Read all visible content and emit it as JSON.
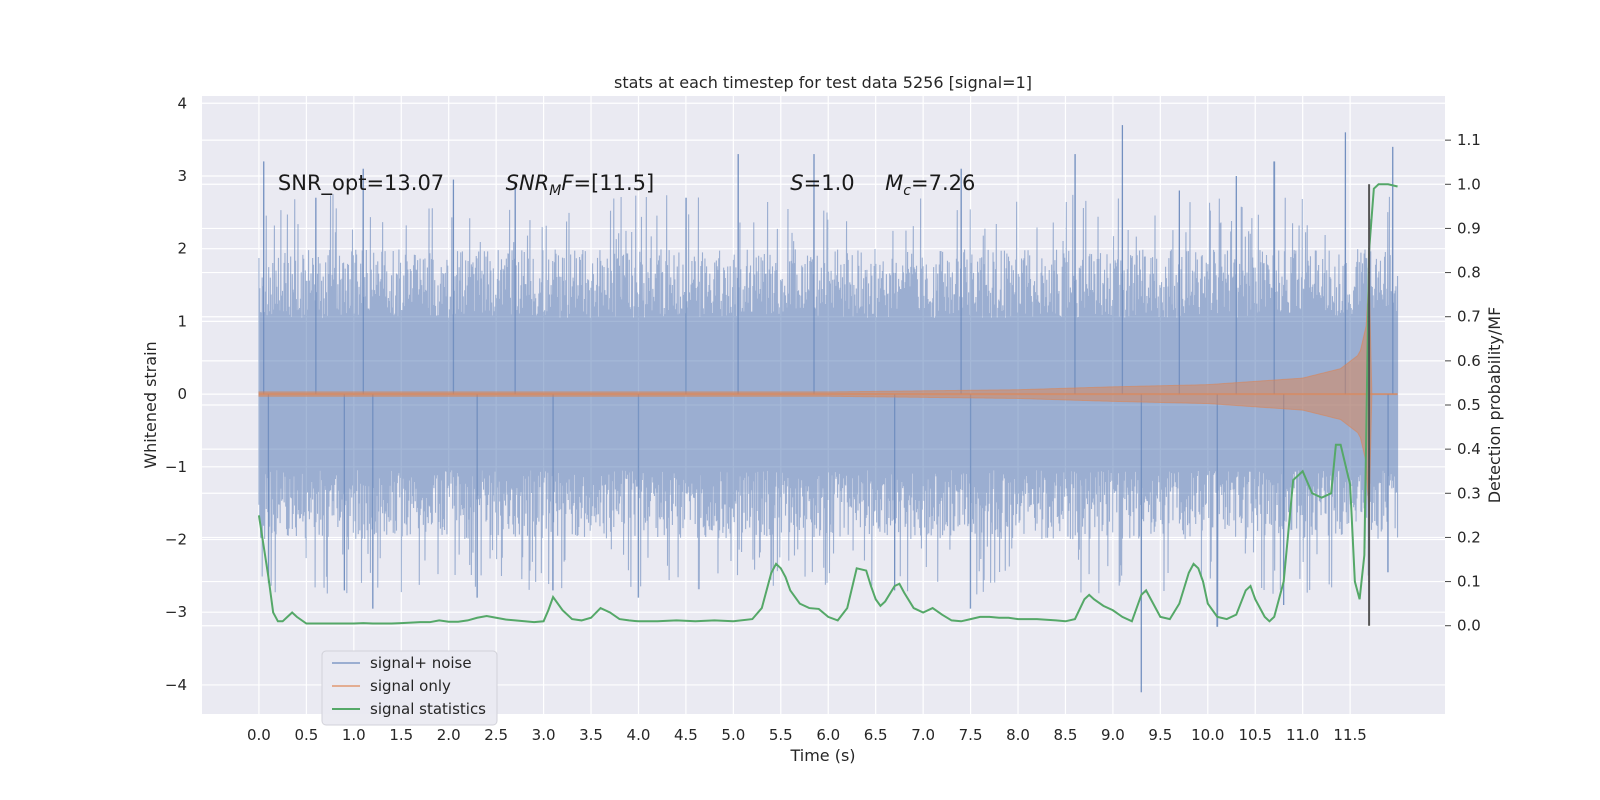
{
  "chart_data": {
    "type": "line",
    "title": "stats at each timestep for test data 5256 [signal=1]",
    "xlabel": "Time (s)",
    "ylabel": "Whitened strain",
    "y2label": "Detection probability/MF",
    "xlim": [
      -0.6,
      12.5
    ],
    "ylim": [
      -4.4,
      4.1
    ],
    "y2lim": [
      -0.2,
      1.2
    ],
    "x_ticks": [
      "0.0",
      "0.5",
      "1.0",
      "1.5",
      "2.0",
      "2.5",
      "3.0",
      "3.5",
      "4.0",
      "4.5",
      "5.0",
      "5.5",
      "6.0",
      "6.5",
      "7.0",
      "7.5",
      "8.0",
      "8.5",
      "9.0",
      "9.5",
      "10.0",
      "10.5",
      "11.0",
      "11.5"
    ],
    "y_ticks": [
      "−4",
      "−3",
      "−2",
      "−1",
      "0",
      "1",
      "2",
      "3",
      "4"
    ],
    "y2_ticks": [
      "0.0",
      "0.1",
      "0.2",
      "0.3",
      "0.4",
      "0.5",
      "0.6",
      "0.7",
      "0.8",
      "0.9",
      "1.0",
      "1.1"
    ],
    "grid": true,
    "legend_position": "lower-left",
    "annotations": [
      {
        "main": "SNR_opt=13.07",
        "x": 0.2
      },
      {
        "main": "SNR",
        "sub": "M",
        "tail": "F=[11.5]",
        "x": 2.6
      },
      {
        "main": "S",
        "tail": "=1.0",
        "x": 5.6
      },
      {
        "main": "M",
        "sub": "c",
        "tail": "=7.26",
        "x": 6.6
      }
    ],
    "annotation_y": 2.9,
    "vline": {
      "x": 11.7,
      "y2_range": [
        0.0,
        1.0
      ]
    },
    "series": [
      {
        "name": "signal+ noise",
        "color": "#4c72b0",
        "axis": "left",
        "x_range": [
          0.0,
          12.0
        ],
        "envelope_peaks": [
          [
            0.05,
            3.2
          ],
          [
            0.6,
            2.7
          ],
          [
            1.1,
            3.1
          ],
          [
            2.05,
            2.95
          ],
          [
            2.7,
            2.9
          ],
          [
            4.5,
            2.7
          ],
          [
            5.05,
            3.3
          ],
          [
            5.85,
            3.3
          ],
          [
            7.4,
            3.1
          ],
          [
            8.6,
            3.3
          ],
          [
            9.1,
            3.7
          ],
          [
            9.7,
            2.8
          ],
          [
            10.3,
            3.0
          ],
          [
            10.7,
            3.2
          ],
          [
            11.45,
            3.6
          ],
          [
            11.95,
            3.4
          ]
        ],
        "envelope_troughs": [
          [
            0.1,
            -2.6
          ],
          [
            0.9,
            -2.7
          ],
          [
            1.2,
            -2.95
          ],
          [
            2.3,
            -2.8
          ],
          [
            3.1,
            -2.7
          ],
          [
            4.0,
            -2.8
          ],
          [
            6.7,
            -2.7
          ],
          [
            7.5,
            -2.95
          ],
          [
            9.3,
            -4.1
          ],
          [
            10.1,
            -3.2
          ],
          [
            10.8,
            -2.9
          ],
          [
            11.9,
            -2.45
          ]
        ],
        "typical_amplitude": 1.9
      },
      {
        "name": "signal only",
        "color": "#dd8452",
        "axis": "left",
        "x_range": [
          0.0,
          12.0
        ],
        "chirp_amplitude": [
          [
            0.0,
            0.03
          ],
          [
            6.0,
            0.03
          ],
          [
            8.0,
            0.06
          ],
          [
            9.0,
            0.1
          ],
          [
            10.0,
            0.13
          ],
          [
            11.0,
            0.22
          ],
          [
            11.4,
            0.35
          ],
          [
            11.6,
            0.55
          ],
          [
            11.68,
            1.0
          ],
          [
            11.7,
            1.7
          ],
          [
            11.72,
            0.0
          ],
          [
            12.0,
            0.0
          ]
        ]
      },
      {
        "name": "signal statistics",
        "color": "#55a868",
        "axis": "right",
        "x": [
          0.0,
          0.05,
          0.1,
          0.15,
          0.2,
          0.25,
          0.3,
          0.35,
          0.4,
          0.5,
          0.6,
          0.7,
          0.8,
          0.9,
          1.0,
          1.1,
          1.2,
          1.3,
          1.4,
          1.5,
          1.6,
          1.7,
          1.8,
          1.9,
          2.0,
          2.1,
          2.2,
          2.3,
          2.4,
          2.5,
          2.6,
          2.7,
          2.8,
          2.9,
          3.0,
          3.05,
          3.1,
          3.2,
          3.3,
          3.4,
          3.5,
          3.6,
          3.7,
          3.8,
          3.9,
          4.0,
          4.2,
          4.4,
          4.6,
          4.8,
          5.0,
          5.2,
          5.3,
          5.4,
          5.45,
          5.5,
          5.55,
          5.6,
          5.7,
          5.8,
          5.9,
          6.0,
          6.1,
          6.2,
          6.3,
          6.4,
          6.45,
          6.5,
          6.55,
          6.6,
          6.7,
          6.75,
          6.8,
          6.9,
          7.0,
          7.1,
          7.2,
          7.3,
          7.4,
          7.5,
          7.6,
          7.7,
          7.8,
          7.9,
          8.0,
          8.2,
          8.4,
          8.5,
          8.6,
          8.7,
          8.75,
          8.8,
          8.9,
          9.0,
          9.1,
          9.2,
          9.3,
          9.35,
          9.4,
          9.5,
          9.6,
          9.7,
          9.8,
          9.85,
          9.9,
          9.95,
          10.0,
          10.1,
          10.2,
          10.3,
          10.4,
          10.45,
          10.5,
          10.6,
          10.65,
          10.7,
          10.8,
          10.9,
          11.0,
          11.1,
          11.2,
          11.3,
          11.35,
          11.4,
          11.5,
          11.55,
          11.6,
          11.65,
          11.7,
          11.75,
          11.8,
          11.85,
          11.9,
          12.0
        ],
        "values": [
          0.25,
          0.18,
          0.11,
          0.03,
          0.01,
          0.01,
          0.02,
          0.03,
          0.02,
          0.005,
          0.005,
          0.005,
          0.005,
          0.005,
          0.005,
          0.006,
          0.005,
          0.005,
          0.005,
          0.006,
          0.007,
          0.008,
          0.008,
          0.012,
          0.009,
          0.009,
          0.012,
          0.018,
          0.022,
          0.018,
          0.014,
          0.012,
          0.01,
          0.008,
          0.01,
          0.035,
          0.065,
          0.035,
          0.015,
          0.012,
          0.018,
          0.04,
          0.03,
          0.015,
          0.012,
          0.01,
          0.01,
          0.012,
          0.01,
          0.012,
          0.01,
          0.015,
          0.04,
          0.12,
          0.14,
          0.13,
          0.11,
          0.08,
          0.05,
          0.04,
          0.038,
          0.02,
          0.012,
          0.04,
          0.13,
          0.125,
          0.09,
          0.06,
          0.045,
          0.055,
          0.09,
          0.095,
          0.075,
          0.04,
          0.03,
          0.04,
          0.025,
          0.012,
          0.01,
          0.015,
          0.02,
          0.02,
          0.018,
          0.018,
          0.015,
          0.015,
          0.012,
          0.01,
          0.015,
          0.06,
          0.07,
          0.06,
          0.045,
          0.035,
          0.02,
          0.01,
          0.07,
          0.08,
          0.06,
          0.02,
          0.015,
          0.05,
          0.12,
          0.14,
          0.13,
          0.1,
          0.05,
          0.02,
          0.015,
          0.025,
          0.08,
          0.09,
          0.06,
          0.02,
          0.01,
          0.02,
          0.1,
          0.33,
          0.35,
          0.3,
          0.29,
          0.3,
          0.41,
          0.41,
          0.32,
          0.1,
          0.06,
          0.16,
          0.85,
          0.99,
          1.0,
          1.0,
          1.0,
          0.995
        ]
      }
    ]
  }
}
